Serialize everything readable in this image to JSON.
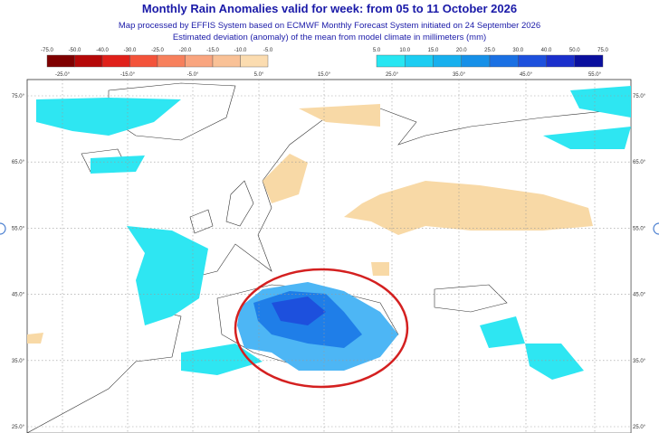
{
  "header": {
    "title": "Monthly Rain Anomalies valid for week: from 05 to 11 October 2026",
    "subtitle_lines": [
      "Map processed by EFFIS System based on ECMWF Monthly Forecast System initiated on 24 September 2026",
      "Estimated deviation (anomaly) of the mean from model climate in millimeters (mm)"
    ]
  },
  "legend": {
    "negative": {
      "labels": [
        "-75.0",
        "-50.0",
        "-40.0",
        "-30.0",
        "-25.0",
        "-20.0",
        "-15.0",
        "-10.0",
        "-5.0"
      ],
      "colors": [
        "#7f0000",
        "#b50808",
        "#e0201a",
        "#f3533a",
        "#f7805c",
        "#f9a57f",
        "#f9c196",
        "#fbdcb0"
      ]
    },
    "positive": {
      "labels": [
        "5.0",
        "10.0",
        "15.0",
        "20.0",
        "25.0",
        "30.0",
        "40.0",
        "50.0",
        "75.0"
      ],
      "colors": [
        "#27e6f2",
        "#1ccdf2",
        "#17b0ee",
        "#1690e8",
        "#1a70e3",
        "#1d50dd",
        "#1a2fcc",
        "#0a0f9e"
      ]
    }
  },
  "map": {
    "lon_labels": [
      "-25.0°",
      "-15.0°",
      "-5.0°",
      "5.0°",
      "15.0°",
      "25.0°",
      "35.0°",
      "45.0°",
      "55.0°"
    ],
    "lat_labels": [
      "75.0°",
      "65.0°",
      "55.0°",
      "45.0°",
      "35.0°",
      "25.0°"
    ]
  }
}
